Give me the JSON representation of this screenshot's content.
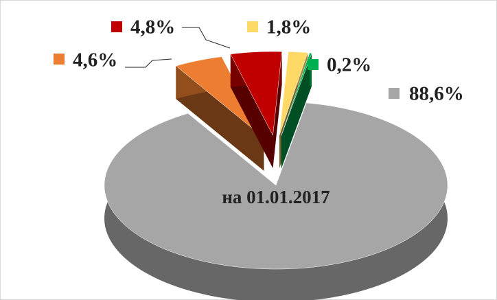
{
  "chart_data": {
    "type": "pie",
    "annotation": "на 01.01.2017",
    "values": [
      1.8,
      0.2,
      88.6,
      4.6,
      4.8
    ],
    "value_labels": [
      "1,8%",
      "0,2%",
      "88,6%",
      "4,6%",
      "4,8%"
    ],
    "colors": [
      "#ffd966",
      "#00b050",
      "#a6a6a6",
      "#ed7d31",
      "#c00000"
    ]
  }
}
